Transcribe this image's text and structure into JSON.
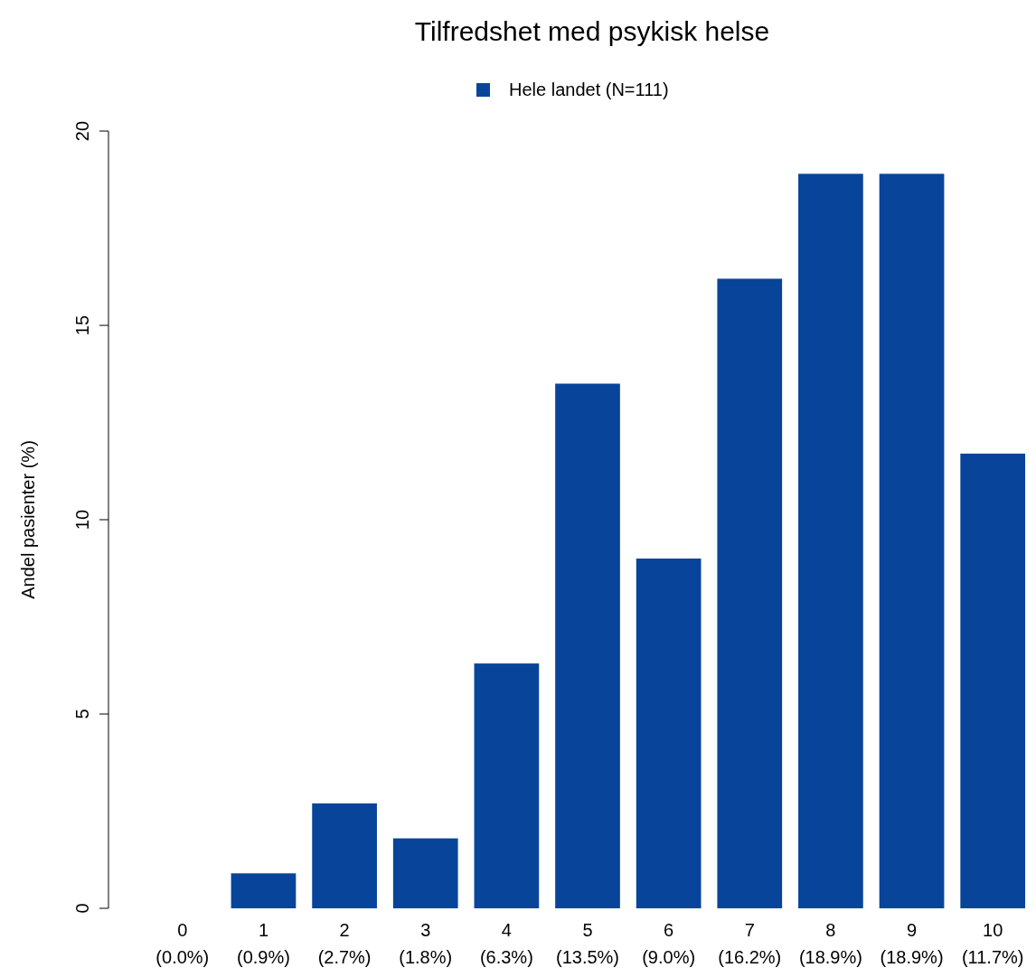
{
  "chart_data": {
    "type": "bar",
    "title": "Tilfredshet med psykisk helse",
    "ylabel": "Andel pasienter (%)",
    "categories": [
      "0\n(0.0%)",
      "1\n(0.9%)",
      "2\n(2.7%)",
      "3\n(1.8%)",
      "4\n(6.3%)",
      "5\n(13.5%)",
      "6\n(9.0%)",
      "7\n(16.2%)",
      "8\n(18.9%)",
      "9\n(18.9%)",
      "10\n(11.7%)"
    ],
    "series": [
      {
        "name": "Hele landet (N=111)",
        "color": "#08459a",
        "values": [
          0,
          0.9,
          2.7,
          1.8,
          6.3,
          13.5,
          9.0,
          16.2,
          18.9,
          18.9,
          11.7
        ]
      }
    ],
    "ylim": [
      0,
      20
    ],
    "yticks": [
      0,
      5,
      10,
      15,
      20
    ],
    "legend": "top",
    "grid": false
  }
}
